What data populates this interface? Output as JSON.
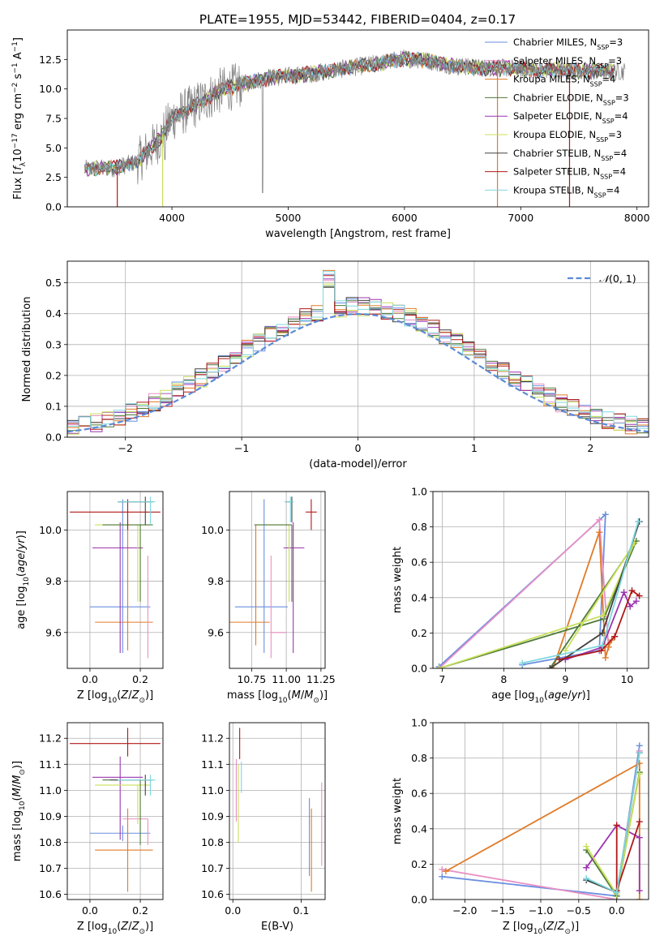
{
  "figure_title": "PLATE=1955, MJD=53442, FIBERID=0404, z=0.17",
  "colors": {
    "Chabrier MILES": "#6a8fe0",
    "Salpeter MILES": "#e88fc4",
    "Kroupa MILES": "#e07b28",
    "Chabrier ELODIE": "#4e7a38",
    "Salpeter ELODIE": "#9b34b0",
    "Kroupa ELODIE": "#c9e05a",
    "Chabrier STELIB": "#404040",
    "Salpeter STELIB": "#b01818",
    "Kroupa STELIB": "#7fd8de",
    "data": "#808080",
    "gaussian": "#5b8bd6"
  },
  "chart_data": [
    {
      "id": "spectrum",
      "type": "line",
      "title": "",
      "xlabel": "wavelength [Angstrom, rest frame]",
      "ylabel": "Flux [f_λ 10^-17 erg cm^-2 s^-1 A^-1]",
      "xlim": [
        3100,
        8100
      ],
      "ylim": [
        0,
        15
      ],
      "xticks": [
        4000,
        5000,
        6000,
        7000,
        8000
      ],
      "yticks": [
        0.0,
        2.5,
        5.0,
        7.5,
        10.0,
        12.5
      ],
      "grid": false,
      "legend_position": "right",
      "legend": [
        {
          "base": "Chabrier MILES, N",
          "n": "3"
        },
        {
          "base": "Salpeter MILES, N",
          "n": "3"
        },
        {
          "base": "Kroupa MILES, N",
          "n": "4"
        },
        {
          "base": "Chabrier ELODIE, N",
          "n": "3"
        },
        {
          "base": "Salpeter ELODIE, N",
          "n": "4"
        },
        {
          "base": "Kroupa ELODIE, N",
          "n": "3"
        },
        {
          "base": "Chabrier STELIB, N",
          "n": "4"
        },
        {
          "base": "Salpeter STELIB, N",
          "n": "4"
        },
        {
          "base": "Kroupa STELIB, N",
          "n": "4"
        }
      ],
      "continuum": {
        "wavelength": [
          3250,
          3500,
          3700,
          3900,
          4000,
          4200,
          4400,
          4600,
          4800,
          5000,
          5200,
          5400,
          5600,
          5800,
          6000,
          6200,
          6400,
          6600,
          6800,
          7000,
          7200,
          7400,
          7600,
          7800
        ],
        "flux": [
          3.2,
          3.3,
          3.8,
          5.8,
          7.5,
          8.6,
          9.8,
          10.4,
          10.9,
          11.1,
          11.3,
          11.6,
          11.9,
          12.2,
          12.6,
          12.4,
          12.0,
          11.8,
          11.8,
          11.7,
          11.6,
          11.6,
          11.5,
          11.5
        ]
      },
      "model_edges": [
        {
          "series": "Salpeter STELIB",
          "wavelength": 3530
        },
        {
          "series": "Kroupa ELODIE",
          "wavelength": 3920
        },
        {
          "series": "Kroupa MILES",
          "wavelength": 6800
        },
        {
          "series": "Salpeter STELIB",
          "wavelength": 7420
        }
      ]
    },
    {
      "id": "residuals",
      "type": "step",
      "title": "",
      "xlabel": "(data-model)/error",
      "ylabel": "Normed distribution",
      "xlim": [
        -2.5,
        2.5
      ],
      "ylim": [
        0,
        0.57
      ],
      "xticks": [
        -2,
        -1,
        0,
        1,
        2
      ],
      "yticks": [
        0.0,
        0.1,
        0.2,
        0.3,
        0.4,
        0.5
      ],
      "grid": true,
      "legend_position": "top-right",
      "gaussian_label": "N(0,1)",
      "bin_width": 0.1
    },
    {
      "id": "age_vs_Z",
      "type": "errorbar",
      "xlabel": "Z [log10(Z/Z⊙)]",
      "ylabel": "age  [log10(age/yr)]",
      "xlim": [
        -0.09,
        0.29
      ],
      "ylim": [
        9.46,
        10.15
      ],
      "xticks": [
        0.0,
        0.2
      ],
      "yticks": [
        9.6,
        9.8,
        10.0
      ],
      "grid": true,
      "points": [
        {
          "series": "Chabrier MILES",
          "x": 0.13,
          "xerr": [
            0.13,
            0.11
          ],
          "y": 9.7,
          "yerr": [
            0.18,
            0.42
          ]
        },
        {
          "series": "Kroupa MILES",
          "x": 0.15,
          "xerr": [
            0.13,
            0.1
          ],
          "y": 9.64,
          "yerr": [
            0.11,
            0.4
          ]
        },
        {
          "series": "Salpeter MILES",
          "x": 0.23,
          "xerr": [
            0.0,
            0.0
          ],
          "y": 9.6,
          "yerr": [
            0.1,
            0.3
          ]
        },
        {
          "series": "Salpeter ELODIE",
          "x": 0.12,
          "xerr": [
            0.11,
            0.09
          ],
          "y": 9.93,
          "yerr": [
            0.41,
            0.1
          ]
        },
        {
          "series": "Kroupa ELODIE",
          "x": 0.19,
          "xerr": [
            0.17,
            0.05
          ],
          "y": 10.02,
          "yerr": [
            0.3,
            0.0
          ]
        },
        {
          "series": "Chabrier ELODIE",
          "x": 0.2,
          "xerr": [
            0.15,
            0.05
          ],
          "y": 10.02,
          "yerr": [
            0.3,
            0.0
          ]
        },
        {
          "series": "Salpeter STELIB",
          "x": 0.15,
          "xerr": [
            0.23,
            0.13
          ],
          "y": 10.07,
          "yerr": [
            0.07,
            0.05
          ]
        },
        {
          "series": "Chabrier STELIB",
          "x": 0.22,
          "xerr": [
            0.11,
            0.03
          ],
          "y": 10.11,
          "yerr": [
            0.09,
            0.02
          ]
        },
        {
          "series": "Kroupa STELIB",
          "x": 0.24,
          "xerr": [
            0.13,
            0.02
          ],
          "y": 10.11,
          "yerr": [
            0.09,
            0.02
          ]
        }
      ]
    },
    {
      "id": "age_vs_mass",
      "type": "errorbar",
      "xlabel": "mass [log10(M/M⊙)]",
      "ylabel": "",
      "xlim": [
        10.59,
        11.28
      ],
      "ylim": [
        9.46,
        10.15
      ],
      "xticks": [
        10.75,
        11.0,
        11.25
      ],
      "yticks": [
        9.6,
        9.8,
        10.0
      ],
      "grid": true,
      "points": [
        {
          "series": "Chabrier MILES",
          "x": 10.84,
          "xerr": [
            0.21,
            0.17
          ],
          "y": 9.7,
          "yerr": [
            0.18,
            0.42
          ]
        },
        {
          "series": "Kroupa MILES",
          "x": 10.78,
          "xerr": [
            0.19,
            0.1
          ],
          "y": 9.64,
          "yerr": [
            0.09,
            0.38
          ]
        },
        {
          "series": "Salpeter MILES",
          "x": 10.89,
          "xerr": [
            0.0,
            0.11
          ],
          "y": 9.6,
          "yerr": [
            0.1,
            0.3
          ]
        },
        {
          "series": "Salpeter ELODIE",
          "x": 11.05,
          "xerr": [
            0.07,
            0.08
          ],
          "y": 9.93,
          "yerr": [
            0.41,
            0.1
          ]
        },
        {
          "series": "Kroupa ELODIE",
          "x": 11.02,
          "xerr": [
            0.25,
            0.0
          ],
          "y": 10.02,
          "yerr": [
            0.3,
            0.0
          ]
        },
        {
          "series": "Chabrier ELODIE",
          "x": 11.04,
          "xerr": [
            0.27,
            0.0
          ],
          "y": 10.02,
          "yerr": [
            0.3,
            0.0
          ]
        },
        {
          "series": "Salpeter STELIB",
          "x": 11.18,
          "xerr": [
            0.04,
            0.04
          ],
          "y": 10.07,
          "yerr": [
            0.07,
            0.05
          ]
        },
        {
          "series": "Chabrier STELIB",
          "x": 11.04,
          "xerr": [
            0.05,
            0.01
          ],
          "y": 10.11,
          "yerr": [
            0.08,
            0.02
          ]
        },
        {
          "series": "Kroupa STELIB",
          "x": 11.03,
          "xerr": [
            0.04,
            0.02
          ],
          "y": 10.11,
          "yerr": [
            0.08,
            0.02
          ]
        }
      ]
    },
    {
      "id": "weight_vs_age",
      "type": "line",
      "xlabel": "age  [log10(age/yr)]",
      "ylabel": "mass weight",
      "xlim": [
        6.85,
        10.35
      ],
      "ylim": [
        0.0,
        1.0
      ],
      "xticks": [
        7,
        8,
        9,
        10
      ],
      "yticks": [
        0.0,
        0.2,
        0.4,
        0.6,
        0.8,
        1.0
      ],
      "grid": true,
      "series": [
        {
          "name": "Chabrier MILES",
          "x": [
            6.95,
            9.65,
            9.55,
            8.3
          ],
          "y": [
            0.01,
            0.87,
            0.1,
            0.02
          ]
        },
        {
          "name": "Salpeter MILES",
          "x": [
            6.95,
            9.55,
            9.7
          ],
          "y": [
            0.0,
            0.84,
            0.12
          ]
        },
        {
          "name": "Kroupa MILES",
          "x": [
            8.8,
            9.55,
            9.65,
            9.7,
            9.75
          ],
          "y": [
            0.0,
            0.77,
            0.06,
            0.12,
            0.16
          ]
        },
        {
          "name": "Chabrier ELODIE",
          "x": [
            6.95,
            9.62,
            10.15,
            8.75
          ],
          "y": [
            0.0,
            0.28,
            0.72,
            0.0
          ]
        },
        {
          "name": "Salpeter ELODIE",
          "x": [
            9.0,
            9.6,
            9.95,
            10.05,
            10.15
          ],
          "y": [
            0.05,
            0.12,
            0.43,
            0.35,
            0.38
          ]
        },
        {
          "name": "Kroupa ELODIE",
          "x": [
            6.95,
            9.62,
            10.12,
            9.0
          ],
          "y": [
            0.0,
            0.3,
            0.71,
            0.1
          ]
        },
        {
          "name": "Chabrier STELIB",
          "x": [
            8.75,
            9.6,
            10.2
          ],
          "y": [
            0.0,
            0.2,
            0.83
          ]
        },
        {
          "name": "Salpeter STELIB",
          "x": [
            8.9,
            9.58,
            9.8,
            10.08,
            10.2
          ],
          "y": [
            0.05,
            0.1,
            0.18,
            0.44,
            0.41
          ]
        },
        {
          "name": "Kroupa STELIB",
          "x": [
            8.3,
            9.6,
            10.18
          ],
          "y": [
            0.03,
            0.13,
            0.83
          ]
        }
      ]
    },
    {
      "id": "mass_vs_Z",
      "type": "errorbar",
      "xlabel": "Z [log10(Z/Z⊙)]",
      "ylabel": "mass [log10(M/M⊙)]",
      "xlim": [
        -0.09,
        0.29
      ],
      "ylim": [
        10.58,
        11.26
      ],
      "xticks": [
        0.0,
        0.2
      ],
      "yticks": [
        10.6,
        10.7,
        10.8,
        10.9,
        11.0,
        11.1,
        11.2
      ],
      "grid": true,
      "points": [
        {
          "series": "Chabrier MILES",
          "x": 0.13,
          "xerr": [
            0.13,
            0.11
          ],
          "y": 10.835,
          "yerr": [
            0.03,
            0.03
          ]
        },
        {
          "series": "Kroupa MILES",
          "x": 0.15,
          "xerr": [
            0.13,
            0.1
          ],
          "y": 10.77,
          "yerr": [
            0.16,
            0.16
          ]
        },
        {
          "series": "Salpeter MILES",
          "x": 0.23,
          "xerr": [
            0.1,
            0.0
          ],
          "y": 10.89,
          "yerr": [
            0.1,
            0.0
          ]
        },
        {
          "series": "Salpeter ELODIE",
          "x": 0.12,
          "xerr": [
            0.11,
            0.09
          ],
          "y": 11.05,
          "yerr": [
            0.24,
            0.08
          ]
        },
        {
          "series": "Kroupa ELODIE",
          "x": 0.19,
          "xerr": [
            0.17,
            0.05
          ],
          "y": 11.02,
          "yerr": [
            0.15,
            0.0
          ]
        },
        {
          "series": "Chabrier ELODIE",
          "x": 0.2,
          "xerr": [
            0.15,
            0.05
          ],
          "y": 11.04,
          "yerr": [
            0.25,
            0.0
          ]
        },
        {
          "series": "Salpeter STELIB",
          "x": 0.15,
          "xerr": [
            0.23,
            0.13
          ],
          "y": 11.18,
          "yerr": [
            0.05,
            0.06
          ]
        },
        {
          "series": "Chabrier STELIB",
          "x": 0.22,
          "xerr": [
            0.14,
            0.03
          ],
          "y": 11.04,
          "yerr": [
            0.06,
            0.02
          ]
        },
        {
          "series": "Kroupa STELIB",
          "x": 0.24,
          "xerr": [
            0.13,
            0.02
          ],
          "y": 11.04,
          "yerr": [
            0.06,
            0.02
          ]
        }
      ]
    },
    {
      "id": "mass_vs_EBV",
      "type": "errorbar",
      "xlabel": "E(B-V)",
      "ylabel": "",
      "xlim": [
        -0.005,
        0.135
      ],
      "ylim": [
        10.58,
        11.26
      ],
      "xticks": [
        0.0,
        0.1
      ],
      "yticks": [
        10.6,
        10.7,
        10.8,
        10.9,
        11.0,
        11.1,
        11.2
      ],
      "grid": true,
      "points": [
        {
          "series": "Salpeter STELIB",
          "x": 0.01,
          "xerr": [
            0,
            0
          ],
          "y": 11.18,
          "yerr": [
            0.06,
            0.06
          ]
        },
        {
          "series": "Kroupa STELIB",
          "x": 0.0125,
          "xerr": [
            0,
            0
          ],
          "y": 11.05,
          "yerr": [
            0.06,
            0.06
          ]
        },
        {
          "series": "Salpeter MILES",
          "x": 0.005,
          "xerr": [
            0,
            0
          ],
          "y": 11.0,
          "yerr": [
            0.12,
            0.12
          ]
        },
        {
          "series": "Kroupa ELODIE",
          "x": 0.008,
          "xerr": [
            0,
            0
          ],
          "y": 10.95,
          "yerr": [
            0.15,
            0.15
          ]
        },
        {
          "series": "Chabrier MILES",
          "x": 0.112,
          "xerr": [
            0,
            0
          ],
          "y": 10.82,
          "yerr": [
            0.15,
            0.15
          ]
        },
        {
          "series": "Kroupa MILES",
          "x": 0.115,
          "xerr": [
            0,
            0
          ],
          "y": 10.77,
          "yerr": [
            0.16,
            0.16
          ]
        },
        {
          "series": "Salpeter MILES",
          "x": 0.13,
          "xerr": [
            0,
            0
          ],
          "y": 10.87,
          "yerr": [
            0.16,
            0.16
          ]
        }
      ]
    },
    {
      "id": "weight_vs_Z",
      "type": "line",
      "xlabel": "Z [log10(Z/Z⊙)]",
      "ylabel": "mass weight",
      "xlim": [
        -2.42,
        0.42
      ],
      "ylim": [
        0.0,
        1.0
      ],
      "xticks": [
        -2.0,
        -1.5,
        -1.0,
        -0.5,
        0.0
      ],
      "yticks": [
        0.0,
        0.2,
        0.4,
        0.6,
        0.8,
        1.0
      ],
      "grid": true,
      "series": [
        {
          "name": "Chabrier MILES",
          "x": [
            -2.3,
            0.0,
            0.3
          ],
          "y": [
            0.13,
            0.02,
            0.87
          ]
        },
        {
          "name": "Salpeter MILES",
          "x": [
            -2.3,
            0.0,
            0.3
          ],
          "y": [
            0.17,
            0.0,
            0.84
          ]
        },
        {
          "name": "Kroupa MILES",
          "x": [
            -2.25,
            0.3,
            0.3
          ],
          "y": [
            0.16,
            0.77,
            0.0
          ]
        },
        {
          "name": "Chabrier ELODIE",
          "x": [
            -0.4,
            0.0,
            0.3
          ],
          "y": [
            0.28,
            0.02,
            0.72
          ]
        },
        {
          "name": "Salpeter ELODIE",
          "x": [
            -0.4,
            0.0,
            0.3,
            0.3
          ],
          "y": [
            0.18,
            0.42,
            0.35,
            0.05
          ]
        },
        {
          "name": "Kroupa ELODIE",
          "x": [
            -0.4,
            0.0,
            0.3
          ],
          "y": [
            0.3,
            0.03,
            0.71
          ]
        },
        {
          "name": "Chabrier STELIB",
          "x": [
            -0.4,
            0.0,
            0.3
          ],
          "y": [
            0.11,
            0.04,
            0.83
          ]
        },
        {
          "name": "Salpeter STELIB",
          "x": [
            0.0,
            0.0,
            0.3
          ],
          "y": [
            0.42,
            0.05,
            0.44
          ]
        },
        {
          "name": "Kroupa STELIB",
          "x": [
            -0.4,
            0.0,
            0.3
          ],
          "y": [
            0.12,
            0.04,
            0.83
          ]
        }
      ]
    }
  ]
}
